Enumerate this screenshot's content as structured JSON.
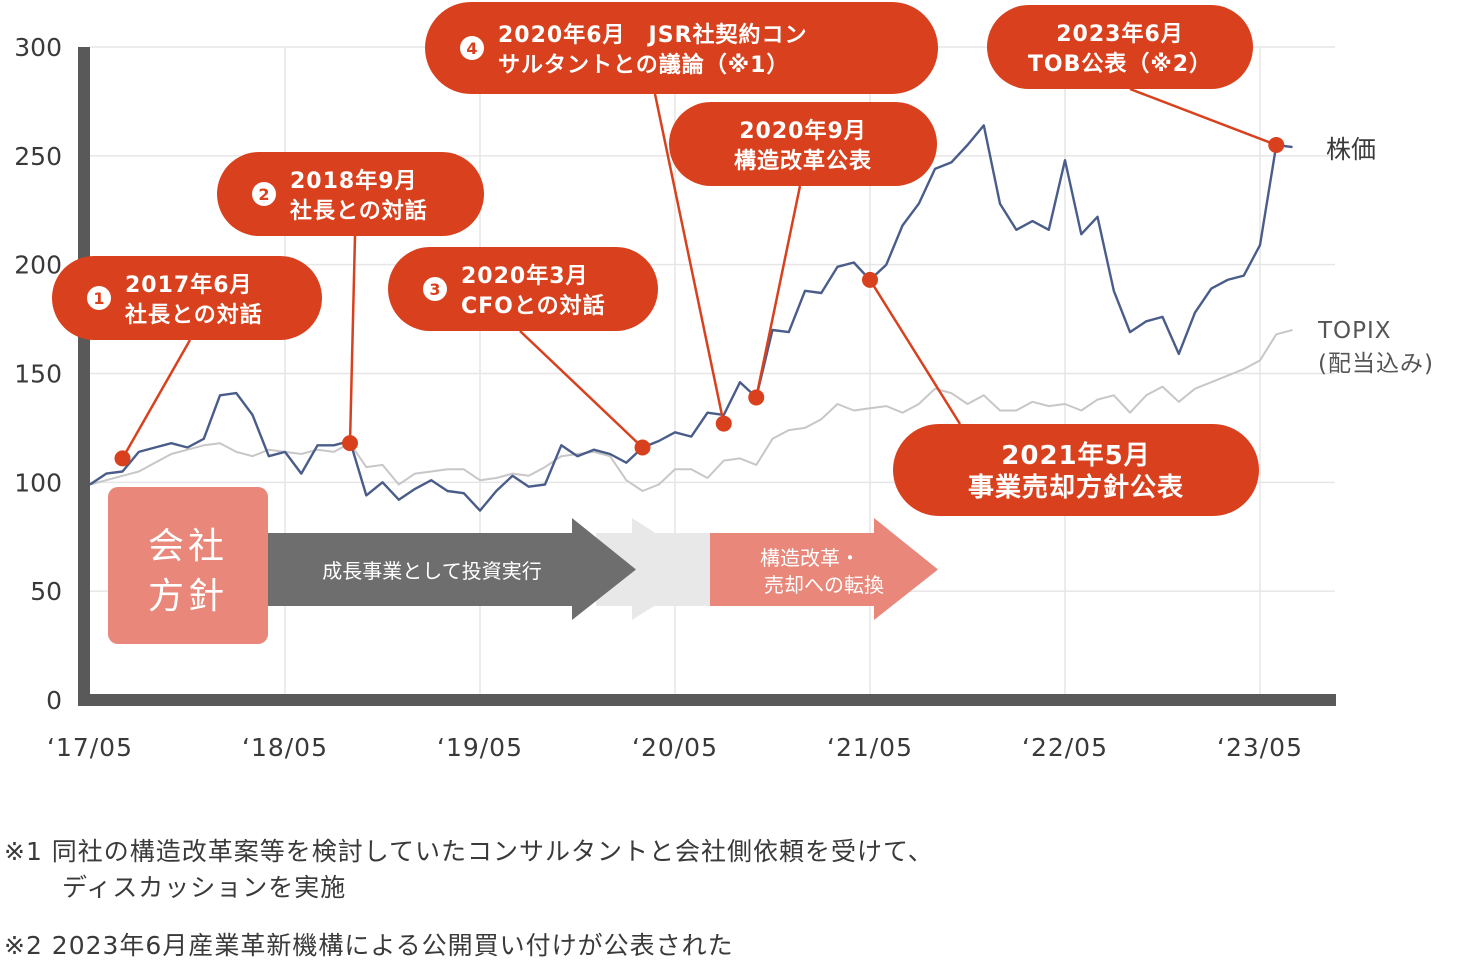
{
  "chart_data": {
    "type": "line",
    "title": "",
    "xlabel": "",
    "ylabel": "",
    "ylim": [
      0,
      300
    ],
    "yticks": [
      "300",
      "250",
      "200",
      "150",
      "100",
      "50",
      "0"
    ],
    "xticks": [
      "‘17/05",
      "‘18/05",
      "‘19/05",
      "‘20/05",
      "‘21/05",
      "‘22/05",
      "‘23/05"
    ],
    "x": [
      "2017-05",
      "2017-06",
      "2017-07",
      "2017-08",
      "2017-09",
      "2017-10",
      "2017-11",
      "2017-12",
      "2018-01",
      "2018-02",
      "2018-03",
      "2018-04",
      "2018-05",
      "2018-06",
      "2018-07",
      "2018-08",
      "2018-09",
      "2018-10",
      "2018-11",
      "2018-12",
      "2019-01",
      "2019-02",
      "2019-03",
      "2019-04",
      "2019-05",
      "2019-06",
      "2019-07",
      "2019-08",
      "2019-09",
      "2019-10",
      "2019-11",
      "2019-12",
      "2020-01",
      "2020-02",
      "2020-03",
      "2020-04",
      "2020-05",
      "2020-06",
      "2020-07",
      "2020-08",
      "2020-09",
      "2020-10",
      "2020-11",
      "2020-12",
      "2021-01",
      "2021-02",
      "2021-03",
      "2021-04",
      "2021-05",
      "2021-06",
      "2021-07",
      "2021-08",
      "2021-09",
      "2021-10",
      "2021-11",
      "2021-12",
      "2022-01",
      "2022-02",
      "2022-03",
      "2022-04",
      "2022-05",
      "2022-06",
      "2022-07",
      "2022-08",
      "2022-09",
      "2022-10",
      "2022-11",
      "2022-12",
      "2023-01",
      "2023-02",
      "2023-03",
      "2023-04",
      "2023-05",
      "2023-06",
      "2023-07"
    ],
    "series": [
      {
        "name": "株価",
        "color": "#4a5d8a",
        "values": [
          99,
          104,
          105,
          114,
          116,
          118,
          116,
          120,
          140,
          141,
          131,
          112,
          114,
          104,
          117,
          117,
          119,
          94,
          100,
          92,
          97,
          101,
          96,
          95,
          87,
          96,
          103,
          98,
          99,
          117,
          112,
          115,
          113,
          109,
          116,
          119,
          123,
          121,
          132,
          131,
          146,
          139,
          170,
          169,
          188,
          187,
          199,
          201,
          193,
          200,
          218,
          228,
          244,
          247,
          255,
          264,
          228,
          216,
          220,
          216,
          248,
          214,
          222,
          188,
          169,
          174,
          176,
          159,
          178,
          189,
          193,
          195,
          209,
          255,
          254
        ]
      },
      {
        "name": "TOPIX\n(配当込み)",
        "color": "#c7c7c7",
        "values": [
          99,
          101,
          103,
          105,
          109,
          113,
          115,
          117,
          118,
          114,
          112,
          115,
          114,
          113,
          115,
          114,
          118,
          107,
          108,
          99,
          104,
          105,
          106,
          106,
          101,
          102,
          104,
          103,
          107,
          112,
          113,
          114,
          112,
          101,
          96,
          99,
          106,
          106,
          102,
          110,
          111,
          108,
          120,
          124,
          125,
          129,
          136,
          133,
          134,
          135,
          132,
          136,
          143,
          141,
          136,
          140,
          133,
          133,
          137,
          135,
          136,
          133,
          138,
          140,
          132,
          140,
          144,
          137,
          143,
          146,
          149,
          152,
          156,
          168,
          170
        ]
      }
    ],
    "annotations": [
      {
        "num": "1",
        "line1": "2017年6月",
        "line2": "社長との対話",
        "x": "2017-07",
        "y": 111
      },
      {
        "num": "2",
        "line1": "2018年9月",
        "line2": "社長との対話",
        "x": "2018-09",
        "y": 118
      },
      {
        "num": "3",
        "line1": "2020年3月",
        "line2": "CFOとの対話",
        "x": "2020-03",
        "y": 116
      },
      {
        "num": "4",
        "line1": "2020年6月　JSR社契約コン",
        "line2": "サルタントとの議論（※1）",
        "x": "2020-08",
        "y": 127
      },
      {
        "num": "",
        "line1": "2020年9月",
        "line2": "構造改革公表",
        "x": "2020-10",
        "y": 139
      },
      {
        "num": "",
        "line1": "2021年5月",
        "line2": "事業売却方針公表",
        "x": "2021-05",
        "y": 193
      },
      {
        "num": "",
        "line1": "2023年6月",
        "line2": "TOB公表（※2）",
        "x": "2023-06",
        "y": 255
      }
    ],
    "policy": {
      "label1": "会社",
      "label2": "方針",
      "arrows": [
        {
          "text1": "成長事業として投資実行",
          "text2": "",
          "color": "#6e6e6e"
        },
        {
          "text1": "",
          "text2": "",
          "color": "#e8e8e8"
        },
        {
          "text1": "構造改革・",
          "text2": "売却への転換",
          "color": "#e8877a"
        }
      ]
    },
    "grid": true,
    "colors": {
      "accent": "#d9411e",
      "policy_box": "#e8877a",
      "axis": "#595959"
    }
  },
  "footnotes": {
    "n1_line1": "※1 同社の構造改革案等を検討していたコンサルタントと会社側依頼を受けて、",
    "n1_line2": "ディスカッションを実施",
    "n2": "※2 2023年6月産業革新機構による公開買い付けが公表された"
  }
}
